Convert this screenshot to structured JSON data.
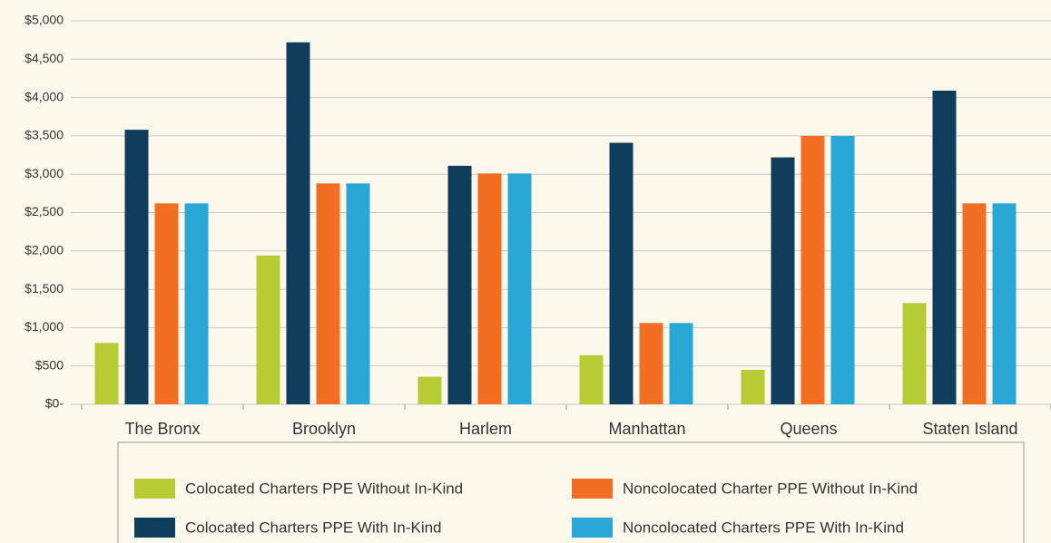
{
  "chart_data": {
    "type": "bar",
    "categories": [
      "The Bronx",
      "Brooklyn",
      "Harlem",
      "Manhattan",
      "Queens",
      "Staten Island"
    ],
    "series": [
      {
        "name": "Colocated Charters PPE Without In-Kind",
        "color": "#b5cc34",
        "values": [
          800,
          1940,
          360,
          640,
          450,
          1320
        ]
      },
      {
        "name": "Colocated Charters PPE With In-Kind",
        "color": "#0f3d5c",
        "values": [
          3580,
          4720,
          3110,
          3410,
          3220,
          4090
        ]
      },
      {
        "name": "Noncolocated Charter PPE Without In-Kind",
        "color": "#f26e22",
        "values": [
          2620,
          2880,
          3010,
          1060,
          3500,
          2620
        ]
      },
      {
        "name": "Noncolocated Charters PPE With In-Kind",
        "color": "#29a8d8",
        "values": [
          2620,
          2880,
          3010,
          1060,
          3500,
          2620
        ]
      }
    ],
    "ylim": [
      0,
      5000
    ],
    "yticks": [
      {
        "value": 0,
        "label": "$0-"
      },
      {
        "value": 500,
        "label": "$500"
      },
      {
        "value": 1000,
        "label": "$1,000"
      },
      {
        "value": 1500,
        "label": "$1,500"
      },
      {
        "value": 2000,
        "label": "$2,000"
      },
      {
        "value": 2500,
        "label": "$2,500"
      },
      {
        "value": 3000,
        "label": "$3,000"
      },
      {
        "value": 3500,
        "label": "$3,500"
      },
      {
        "value": 4000,
        "label": "$4,000"
      },
      {
        "value": 4500,
        "label": "$4,500"
      },
      {
        "value": 5000,
        "label": "$5,000"
      }
    ],
    "grid": true,
    "legend": "bottom"
  }
}
